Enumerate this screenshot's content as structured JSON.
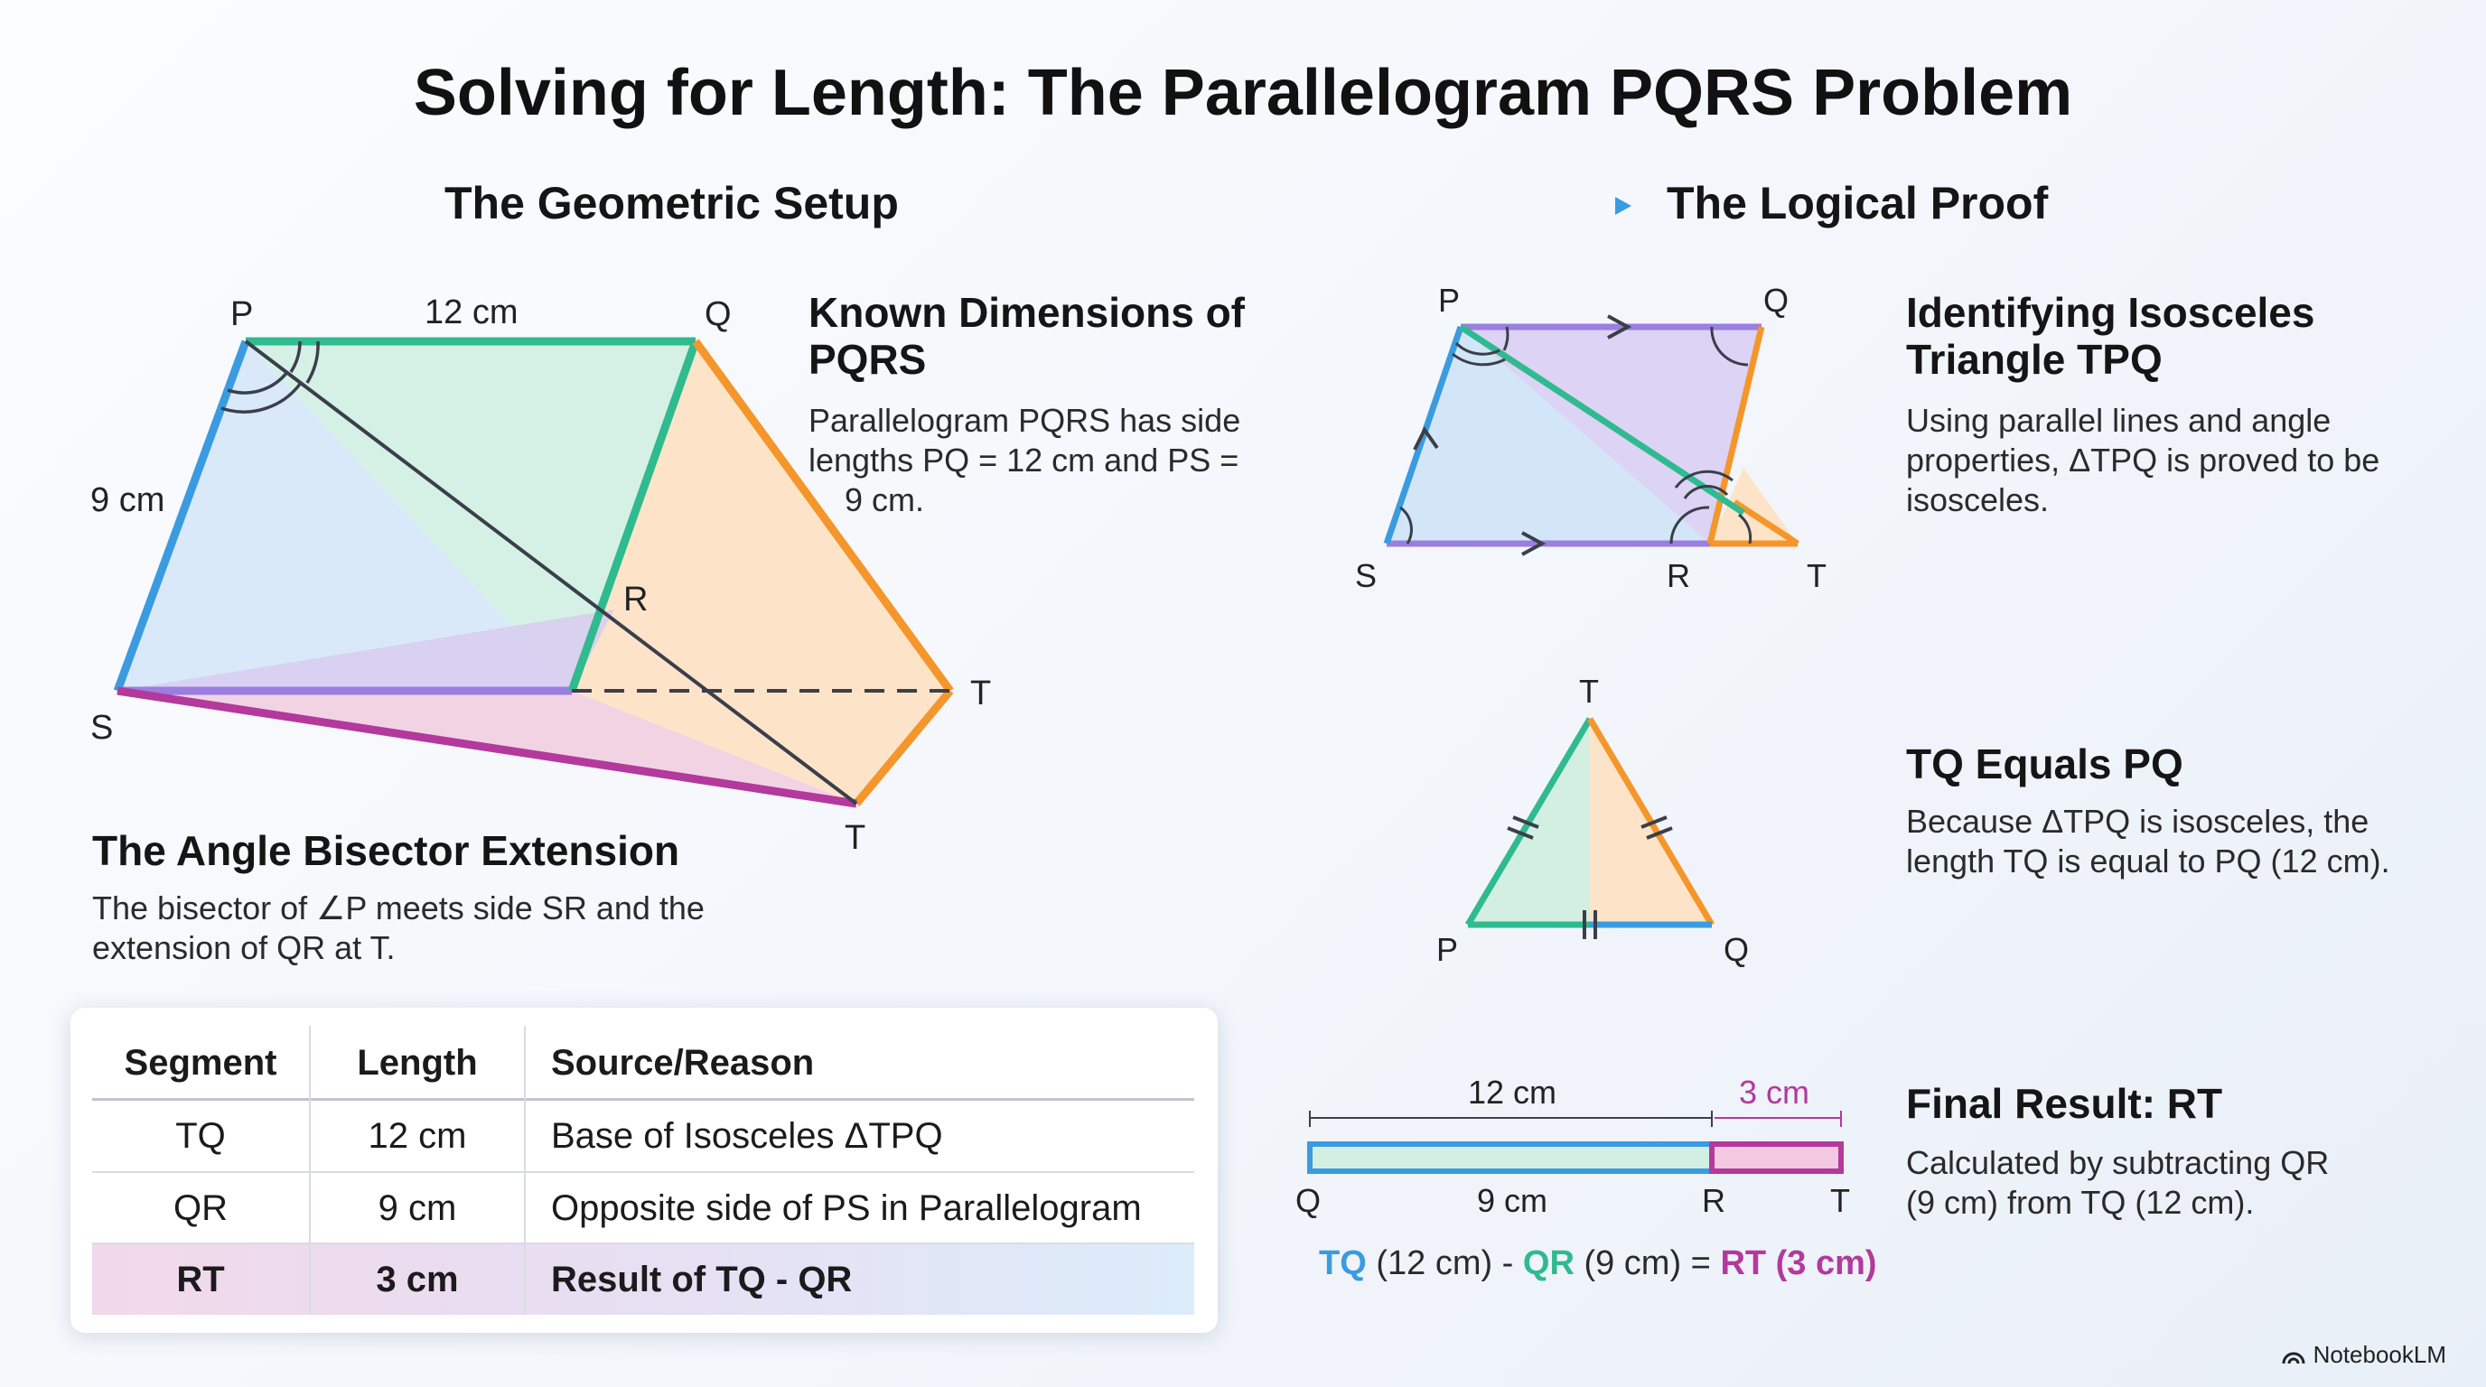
{
  "title": "Solving for Length: The Parallelogram PQRS Problem",
  "setup": {
    "heading": "The Geometric Setup",
    "diagram": {
      "P": "P",
      "Q": "Q",
      "R": "R",
      "S": "S",
      "T1": "T",
      "T2": "T",
      "pq_len": "12 cm",
      "ps_len": "9 cm"
    }
  },
  "known": {
    "heading_line1": "Known Dimensions of",
    "heading_line2": "PQRS",
    "text_line1": "Parallelogram PQRS has side",
    "text_line2": "lengths PQ = 12 cm and PS =",
    "text_line3": "9 cm."
  },
  "bisector": {
    "heading": "The Angle Bisector Extension",
    "text_line1": "The bisector of ∠P meets side SR and the",
    "text_line2": "extension of QR at T."
  },
  "table": {
    "headers": [
      "Segment",
      "Length",
      "Source/Reason"
    ],
    "rows": [
      [
        "TQ",
        "12 cm",
        "Base of Isosceles ΔTPQ"
      ],
      [
        "QR",
        "9 cm",
        "Opposite side of PS in Parallelogram"
      ],
      [
        "RT",
        "3 cm",
        "Result of TQ - QR"
      ]
    ]
  },
  "proof": {
    "heading": "The Logical Proof",
    "d1": {
      "P": "P",
      "Q": "Q",
      "S": "S",
      "R": "R",
      "T": "T"
    },
    "d2": {
      "T": "T",
      "P": "P",
      "Q": "Q"
    },
    "d3": {
      "len12": "12 cm",
      "len3": "3 cm",
      "len9": "9 cm",
      "Q": "Q",
      "R": "R",
      "T": "T"
    },
    "step1": {
      "heading_line1": "Identifying Isosceles",
      "heading_line2": "Triangle TPQ",
      "text_line1": "Using parallel lines and angle",
      "text_line2": "properties, ΔTPQ is proved to be",
      "text_line3": "isosceles."
    },
    "step2": {
      "heading": "TQ Equals PQ",
      "text_line1": "Because ΔTPQ is isosceles, the",
      "text_line2": "length TQ is equal to PQ (12 cm)."
    },
    "step3": {
      "heading": "Final Result: RT",
      "text_line1": "Calculated by subtracting QR",
      "text_line2": "(9 cm) from TQ (12 cm)."
    },
    "equation": {
      "tq": "TQ",
      "tq_val": " (12 cm) - ",
      "qr": "QR",
      "qr_val": " (9 cm) = ",
      "rt": "RT (3 cm)"
    }
  },
  "colors": {
    "blue": "#3a9be0",
    "green": "#2fba8f",
    "orange": "#f5962b",
    "purple": "#9a7ee0",
    "magenta": "#b3399c"
  },
  "logo": "NotebookLM"
}
